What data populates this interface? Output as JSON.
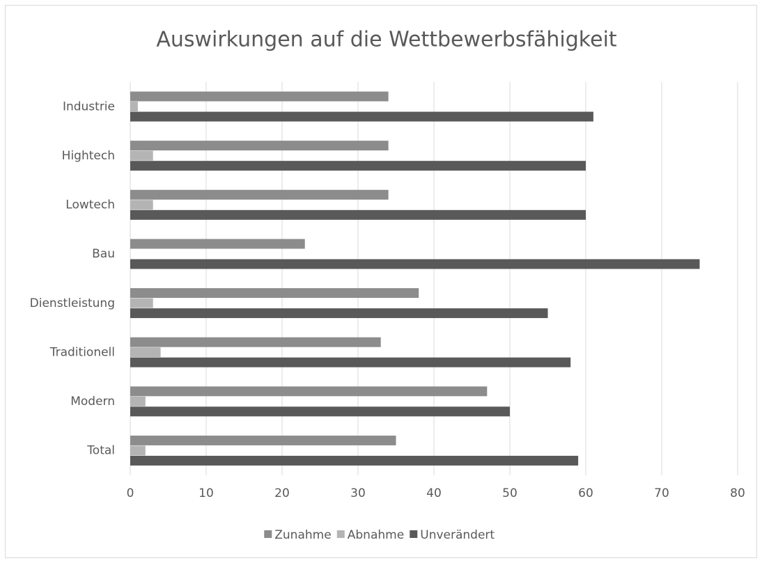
{
  "chart_data": {
    "type": "hbar",
    "title": "Auswirkungen auf die Wettbewerbsfähigkeit",
    "categories": [
      "Industrie",
      "Hightech",
      "Lowtech",
      "Bau",
      "Dienstleistung",
      "Traditionell",
      "Modern",
      "Total"
    ],
    "series": [
      {
        "name": "Zunahme",
        "color": "#8c8c8c",
        "values": [
          34,
          34,
          34,
          23,
          38,
          33,
          47,
          35
        ]
      },
      {
        "name": "Abnahme",
        "color": "#b4b4b4",
        "values": [
          1,
          3,
          3,
          0,
          3,
          4,
          2,
          2
        ]
      },
      {
        "name": "Unverändert",
        "color": "#595959",
        "values": [
          61,
          60,
          60,
          75,
          55,
          58,
          50,
          59
        ]
      }
    ],
    "xlim": [
      0,
      80
    ],
    "xticks": [
      0,
      10,
      20,
      30,
      40,
      50,
      60,
      70,
      80
    ],
    "grid": true,
    "legend": "bottom"
  }
}
